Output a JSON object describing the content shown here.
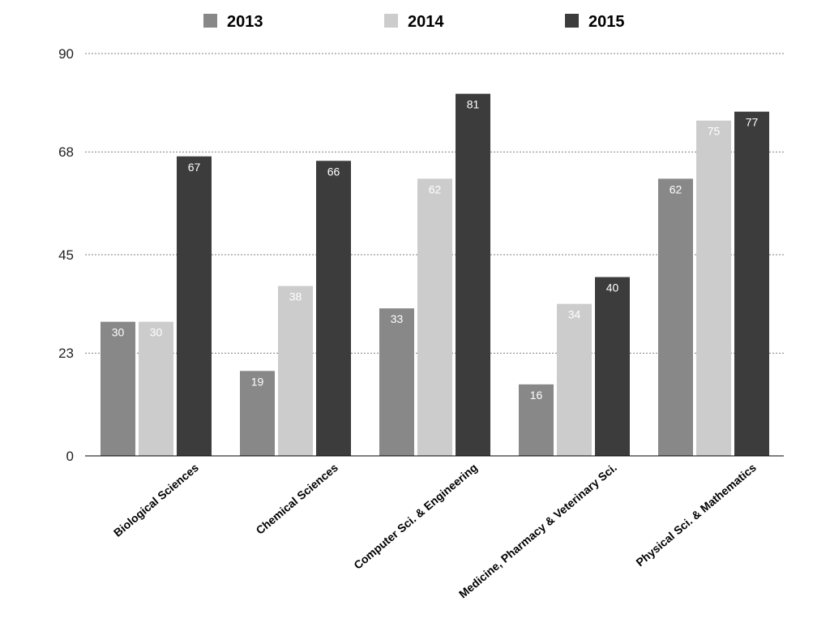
{
  "chart_data": {
    "type": "bar",
    "categories": [
      "Biological Sciences",
      "Chemical Sciences",
      "Computer Sci. & Engineering",
      "Medicine, Pharmacy & Veterinary Sci.",
      "Physical Sci. & Mathematics"
    ],
    "series": [
      {
        "name": "2013",
        "color": "#888888",
        "values": [
          30,
          19,
          33,
          16,
          62
        ]
      },
      {
        "name": "2014",
        "color": "#cccccc",
        "values": [
          30,
          38,
          62,
          34,
          75
        ]
      },
      {
        "name": "2015",
        "color": "#3c3c3c",
        "values": [
          67,
          66,
          81,
          40,
          77
        ]
      }
    ],
    "y_ticks": [
      "0",
      "23",
      "45",
      "68",
      "90"
    ],
    "ylim": [
      0,
      90
    ],
    "grid": true,
    "legend_position": "top"
  }
}
